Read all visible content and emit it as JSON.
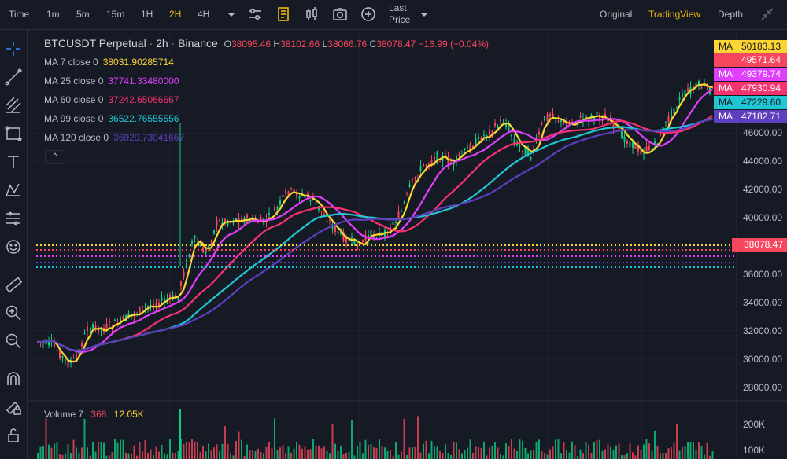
{
  "toolbar": {
    "time": "Time",
    "intervals": [
      "1m",
      "5m",
      "15m",
      "1H",
      "2H",
      "4H"
    ],
    "active_interval": "2H",
    "last_price_line1": "Last",
    "last_price_line2": "Price",
    "views": [
      "Original",
      "TradingView",
      "Depth"
    ],
    "active_view": "TradingView"
  },
  "legend": {
    "symbol": "BTCUSDT Perpetual",
    "interval": "2h",
    "exchange": "Binance",
    "o_label": "O",
    "o_value": "38095.46",
    "h_label": "H",
    "h_value": "38102.66",
    "l_label": "L",
    "l_value": "38066.76",
    "c_label": "C",
    "c_value": "38078.47",
    "change": "−16.99 (−0.04%)",
    "ma_rows": [
      {
        "label": "MA 7 close 0",
        "value": "38031.90285714",
        "color": "#fcd535"
      },
      {
        "label": "MA 25 close 0",
        "value": "37741.33480000",
        "color": "#e040fb"
      },
      {
        "label": "MA 60 close 0",
        "value": "37242.65066667",
        "color": "#f6336e"
      },
      {
        "label": "MA 99 close 0",
        "value": "36522.76555556",
        "color": "#1fc7d4"
      },
      {
        "label": "MA 120 close 0",
        "value": "36929.73041667",
        "color": "#5e3fbd"
      }
    ],
    "collapse_symbol": "^"
  },
  "price_tags": [
    {
      "label": "MA",
      "value": "50183.13",
      "bg": "#fcd535",
      "label_color": "#161a25",
      "value_bg": "#fcd535",
      "value_color": "#161a25"
    },
    {
      "label": "",
      "value": "49571.64",
      "bg": "#f6465d",
      "label_color": "#ffffff",
      "value_bg": "#f6465d",
      "value_color": "#ffffff"
    },
    {
      "label": "MA",
      "value": "49379.74",
      "bg": "#e040fb",
      "label_color": "#ffffff",
      "value_bg": "#e040fb",
      "value_color": "#ffffff"
    },
    {
      "label": "MA",
      "value": "47930.94",
      "bg": "#f6336e",
      "label_color": "#ffffff",
      "value_bg": "#f6336e",
      "value_color": "#ffffff"
    },
    {
      "label": "MA",
      "value": "47229.60",
      "bg": "#1fc7d4",
      "label_color": "#161a25",
      "value_bg": "#1fc7d4",
      "value_color": "#161a25"
    },
    {
      "label": "MA",
      "value": "47182.71",
      "bg": "#5e3fbd",
      "label_color": "#ffffff",
      "value_bg": "#5e3fbd",
      "value_color": "#ffffff"
    }
  ],
  "axis_labels": [
    "46000.00",
    "44000.00",
    "42000.00",
    "40000.00",
    "36000.00",
    "34000.00",
    "32000.00",
    "30000.00",
    "28000.00"
  ],
  "current_price": "38078.47",
  "volume": {
    "label": "Volume 7",
    "value1": "368",
    "value2": "12.05K",
    "axis_labels": [
      "200K",
      "100K"
    ]
  },
  "colors": {
    "up": "#0ecb81",
    "down": "#f6465d",
    "ma7": "#fcd535",
    "ma25": "#e040fb",
    "ma60": "#f6336e",
    "ma99": "#1fc7d4",
    "ma120": "#5e3fbd",
    "accent": "#f0b90b"
  },
  "icons": {
    "toolbar": [
      "chevron-down-icon",
      "indicator-settings-icon",
      "ledger-icon",
      "candlestick-icon",
      "camera-icon",
      "add-circle-icon",
      "chevron-down-icon",
      "collapse-arrows-icon"
    ],
    "left": [
      "crosshair-icon",
      "trend-line-icon",
      "fib-lines-icon",
      "rectangle-icon",
      "text-icon",
      "pattern-icon",
      "prediction-icon",
      "emoji-icon",
      "ruler-icon",
      "zoom-in-icon",
      "zoom-out-icon",
      "magnet-icon",
      "lock-draw-icon",
      "unlock-icon"
    ]
  }
}
